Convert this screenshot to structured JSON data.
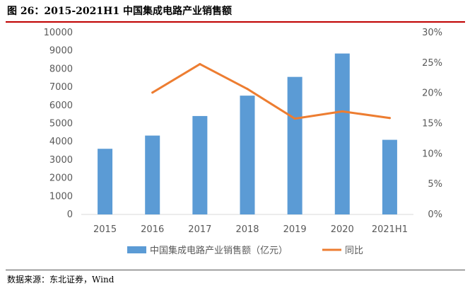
{
  "title": "图 26：2015-2021H1 中国集成电路产业销售额",
  "source": "数据来源：东北证券，Wind",
  "chart_data": {
    "type": "bar",
    "categories": [
      "2015",
      "2016",
      "2017",
      "2018",
      "2019",
      "2020",
      "2021H1"
    ],
    "series": [
      {
        "name": "中国集成电路产业销售额（亿元）",
        "type": "bar",
        "axis": "left",
        "values": [
          3610,
          4336,
          5411,
          6532,
          7562,
          8848,
          4103
        ],
        "color": "#5b9bd5"
      },
      {
        "name": "同比",
        "type": "line",
        "axis": "right",
        "values": [
          null,
          20.1,
          24.8,
          20.7,
          15.8,
          17.0,
          15.9
        ],
        "color": "#ed7d31"
      }
    ],
    "y_left": {
      "min": 0,
      "max": 10000,
      "ticks": [
        "0",
        "1000",
        "2000",
        "3000",
        "4000",
        "5000",
        "6000",
        "7000",
        "8000",
        "9000",
        "10000"
      ]
    },
    "y_right": {
      "min": 0,
      "max": 30,
      "ticks": [
        "0%",
        "5%",
        "10%",
        "15%",
        "20%",
        "25%",
        "30%"
      ]
    },
    "grid": false,
    "legend_position": "bottom"
  }
}
